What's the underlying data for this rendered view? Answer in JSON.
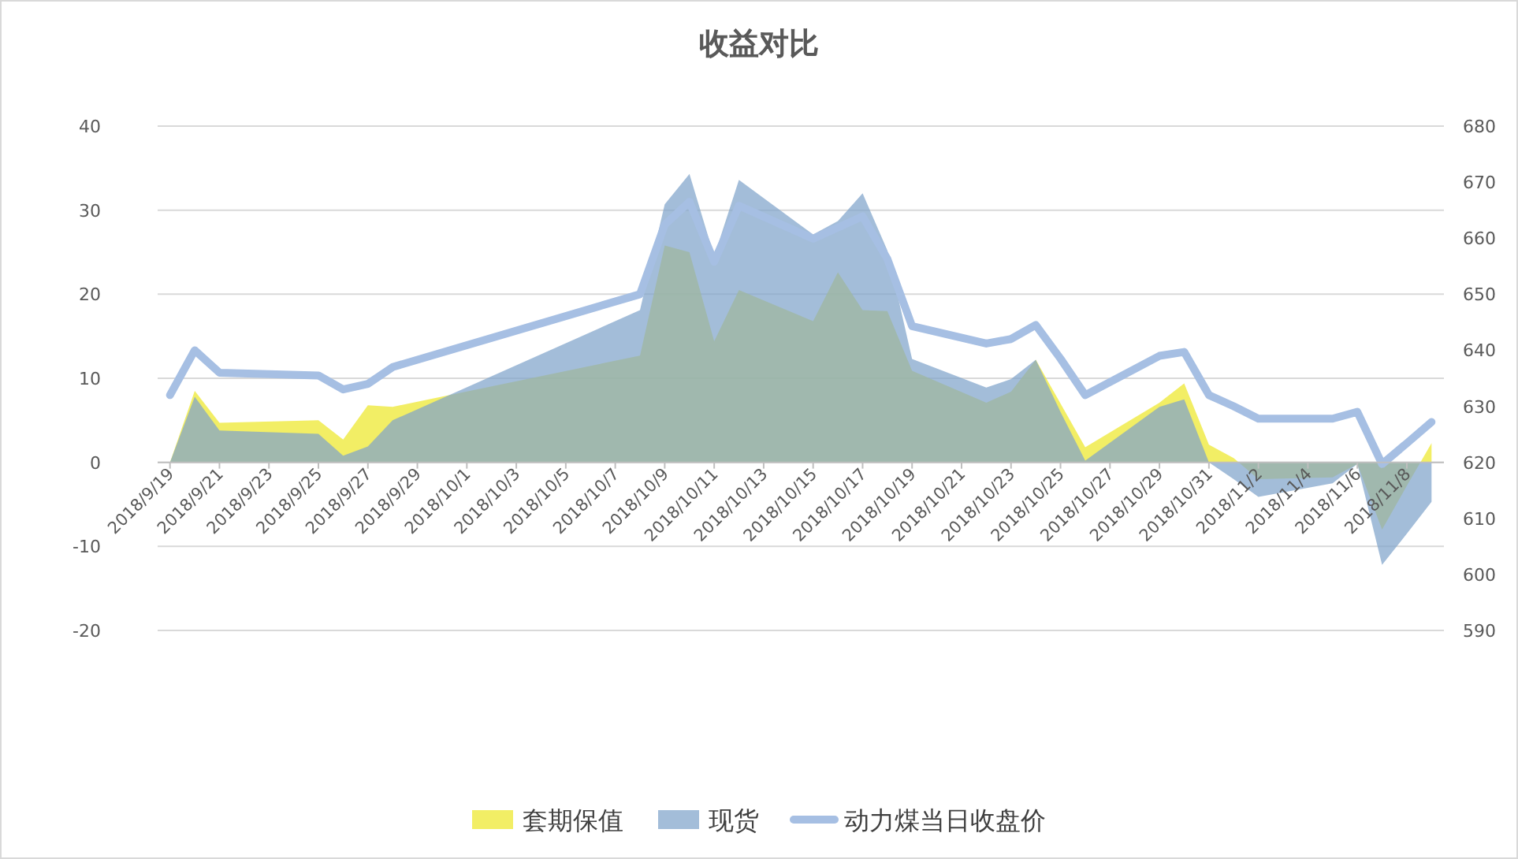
{
  "chart_data": {
    "type": "area",
    "title": "收益对比",
    "x": [
      "2018-09-19",
      "2018-09-20",
      "2018-09-21",
      "2018-09-25",
      "2018-09-26",
      "2018-09-27",
      "2018-09-28",
      "2018-10-08",
      "2018-10-09",
      "2018-10-10",
      "2018-10-11",
      "2018-10-12",
      "2018-10-15",
      "2018-10-16",
      "2018-10-17",
      "2018-10-18",
      "2018-10-19",
      "2018-10-22",
      "2018-10-23",
      "2018-10-24",
      "2018-10-25",
      "2018-10-26",
      "2018-10-29",
      "2018-10-30",
      "2018-10-31",
      "2018-11-01",
      "2018-11-02",
      "2018-11-05",
      "2018-11-06",
      "2018-11-07",
      "2018-11-08",
      "2018-11-09"
    ],
    "series": [
      {
        "name": "套期保值",
        "color": "#ede82a",
        "values": [
          0,
          8.5,
          4.7,
          5.0,
          2.7,
          6.8,
          6.6,
          12.7,
          25.8,
          25.0,
          14.4,
          20.5,
          16.8,
          22.6,
          18.1,
          18.0,
          10.9,
          7.1,
          8.4,
          12.2,
          7.0,
          1.8,
          7.1,
          9.4,
          2.1,
          0.5,
          -2.0,
          -1.8,
          -0.2,
          -8.0,
          -2.8,
          2.3
        ]
      },
      {
        "name": "现货",
        "color": "#7fa4cb",
        "values": [
          0,
          7.8,
          3.8,
          3.4,
          0.8,
          1.9,
          5.0,
          18.1,
          30.7,
          34.3,
          24.5,
          33.6,
          27.1,
          28.7,
          32.0,
          25.2,
          12.3,
          8.9,
          9.9,
          12.2,
          6.0,
          0.2,
          6.6,
          7.5,
          0.0,
          -2.0,
          -4.1,
          -2.5,
          -0.2,
          -12.2,
          -8.5,
          -4.7
        ]
      },
      {
        "name": "动力煤当日收盘价",
        "type": "line",
        "axis": "y2",
        "color": "#a6bfe3",
        "values": [
          632,
          640,
          636,
          635.5,
          633,
          634,
          637,
          650,
          662.4,
          666.5,
          655.8,
          665.8,
          659.9,
          661.9,
          663.9,
          656.3,
          644.3,
          641.2,
          642,
          644.5,
          638.5,
          632,
          639,
          639.7,
          632,
          630,
          627.8,
          627.8,
          629,
          619.7,
          623.4,
          627.2
        ]
      }
    ],
    "xlim": [
      "2018-09-18T12:00",
      "2018-11-09T12:00"
    ],
    "xticks": [
      {
        "value": "2018-09-19",
        "label": "2018/9/19"
      },
      {
        "value": "2018-09-21",
        "label": "2018/9/21"
      },
      {
        "value": "2018-09-23",
        "label": "2018/9/23"
      },
      {
        "value": "2018-09-25",
        "label": "2018/9/25"
      },
      {
        "value": "2018-09-27",
        "label": "2018/9/27"
      },
      {
        "value": "2018-09-29",
        "label": "2018/9/29"
      },
      {
        "value": "2018-10-01",
        "label": "2018/10/1"
      },
      {
        "value": "2018-10-03",
        "label": "2018/10/3"
      },
      {
        "value": "2018-10-05",
        "label": "2018/10/5"
      },
      {
        "value": "2018-10-07",
        "label": "2018/10/7"
      },
      {
        "value": "2018-10-09",
        "label": "2018/10/9"
      },
      {
        "value": "2018-10-11",
        "label": "2018/10/11"
      },
      {
        "value": "2018-10-13",
        "label": "2018/10/13"
      },
      {
        "value": "2018-10-15",
        "label": "2018/10/15"
      },
      {
        "value": "2018-10-17",
        "label": "2018/10/17"
      },
      {
        "value": "2018-10-19",
        "label": "2018/10/19"
      },
      {
        "value": "2018-10-21",
        "label": "2018/10/21"
      },
      {
        "value": "2018-10-23",
        "label": "2018/10/23"
      },
      {
        "value": "2018-10-25",
        "label": "2018/10/25"
      },
      {
        "value": "2018-10-27",
        "label": "2018/10/27"
      },
      {
        "value": "2018-10-29",
        "label": "2018/10/29"
      },
      {
        "value": "2018-10-31",
        "label": "2018/10/31"
      },
      {
        "value": "2018-11-02",
        "label": "2018/11/2"
      },
      {
        "value": "2018-11-04",
        "label": "2018/11/4"
      },
      {
        "value": "2018-11-06",
        "label": "2018/11/6"
      },
      {
        "value": "2018-11-08",
        "label": "2018/11/8"
      }
    ],
    "ylim": [
      -20,
      40
    ],
    "yticks": [
      -20,
      -10,
      0,
      10,
      20,
      30,
      40
    ],
    "y2lim": [
      590,
      680
    ],
    "y2ticks": [
      590,
      600,
      610,
      620,
      630,
      640,
      650,
      660,
      670,
      680
    ],
    "grid": "y",
    "legend": "bottom"
  }
}
